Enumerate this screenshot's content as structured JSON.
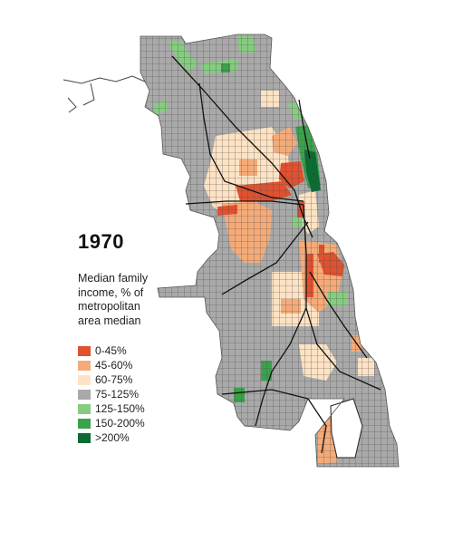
{
  "title": "1970",
  "legend": {
    "title_lines": [
      "Median family",
      "income, % of",
      "metropolitan",
      "area median"
    ],
    "items": [
      {
        "label": "0-45%",
        "color": "#e0512f"
      },
      {
        "label": "45-60%",
        "color": "#f5ab78"
      },
      {
        "label": "60-75%",
        "color": "#fde3c4"
      },
      {
        "label": "75-125%",
        "color": "#a9a9a9"
      },
      {
        "label": "125-150%",
        "color": "#86cc80"
      },
      {
        "label": "150-200%",
        "color": "#3aa24a"
      },
      {
        "label": ">200%",
        "color": "#0b6b33"
      }
    ]
  },
  "colors": {
    "base": "#a9a9a9",
    "street_grid": "#4d4d4d",
    "highways": "#111111"
  }
}
